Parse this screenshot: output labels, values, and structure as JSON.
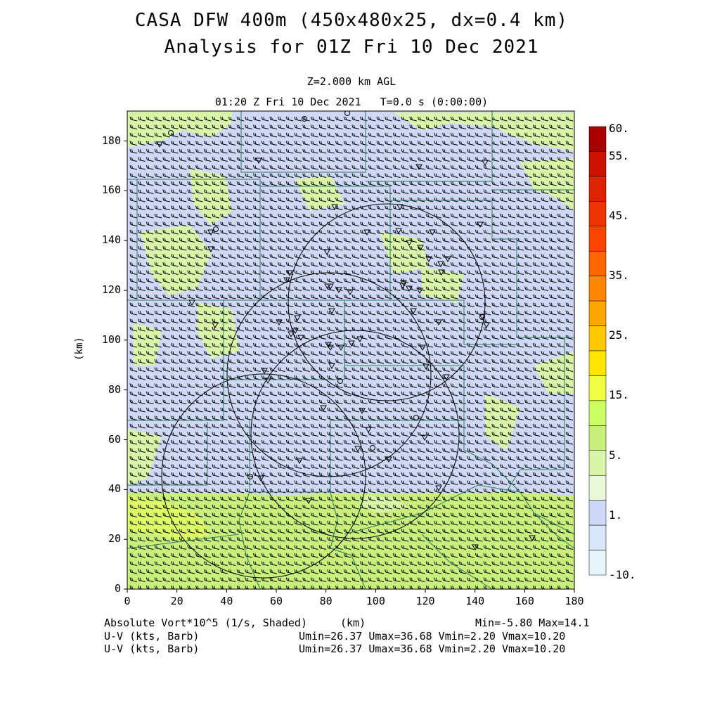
{
  "header": {
    "title_line1": "CASA DFW 400m (450x480x25, dx=0.4 km)",
    "title_line2": "Analysis for 01Z Fri 10 Dec 2021",
    "level": "Z=2.000 km AGL",
    "valid_time": "01:20 Z Fri 10 Dec 2021   T=0.0 s (0:00:00)"
  },
  "footer": {
    "field1": "Absolute Vort*10^5 (1/s, Shaded)",
    "xunit": "(km)",
    "minmax": "Min=-5.80 Max=14.1",
    "field2": "U-V (kts, Barb)",
    "stats2": "Umin=26.37 Umax=36.68 Vmin=2.20 Vmax=10.20",
    "field3": "U-V (kts, Barb)",
    "stats3": "Umin=26.37 Umax=36.68 Vmin=2.20 Vmax=10.20"
  },
  "axes": {
    "yunit": "(km)",
    "xticks": [
      "0",
      "20",
      "40",
      "60",
      "80",
      "100",
      "120",
      "140",
      "160",
      "180"
    ],
    "yticks": [
      "0",
      "20",
      "40",
      "60",
      "80",
      "100",
      "120",
      "140",
      "160",
      "180"
    ],
    "xlim": [
      0,
      180
    ],
    "ylim": [
      0,
      192
    ]
  },
  "colorbar": {
    "labels": [
      "60.",
      "55.",
      "45.",
      "35.",
      "25.",
      "15.",
      "5.",
      "1.",
      "-10."
    ],
    "colors": [
      "#aa0000",
      "#cc1100",
      "#dd2200",
      "#ee3300",
      "#ff4400",
      "#ff6600",
      "#ff8800",
      "#ffa500",
      "#ffc800",
      "#ffe600",
      "#eeff44",
      "#ccff66",
      "#c8f07a",
      "#d8f5a8",
      "#e8f8d8",
      "#d0d8f8",
      "#d8e8f8",
      "#e8f4fc"
    ]
  },
  "colors": {
    "green_field": "#c8f07a",
    "blue_field": "#d0d8f8",
    "pale_green": "#d8f5a8",
    "yellow_green": "#ddff66",
    "county_lines": "#2a7a5a"
  },
  "chart_data": {
    "type": "heatmap",
    "field": "Absolute Vorticity x10^5 (1/s) with U-V wind barbs",
    "xlabel": "(km)",
    "ylabel": "(km)",
    "xlim": [
      0,
      180
    ],
    "ylim": [
      0,
      192
    ],
    "min": -5.8,
    "max": 14.1,
    "wind": {
      "umin": 26.37,
      "umax": 36.68,
      "vmin": 2.2,
      "vmax": 10.2
    }
  }
}
